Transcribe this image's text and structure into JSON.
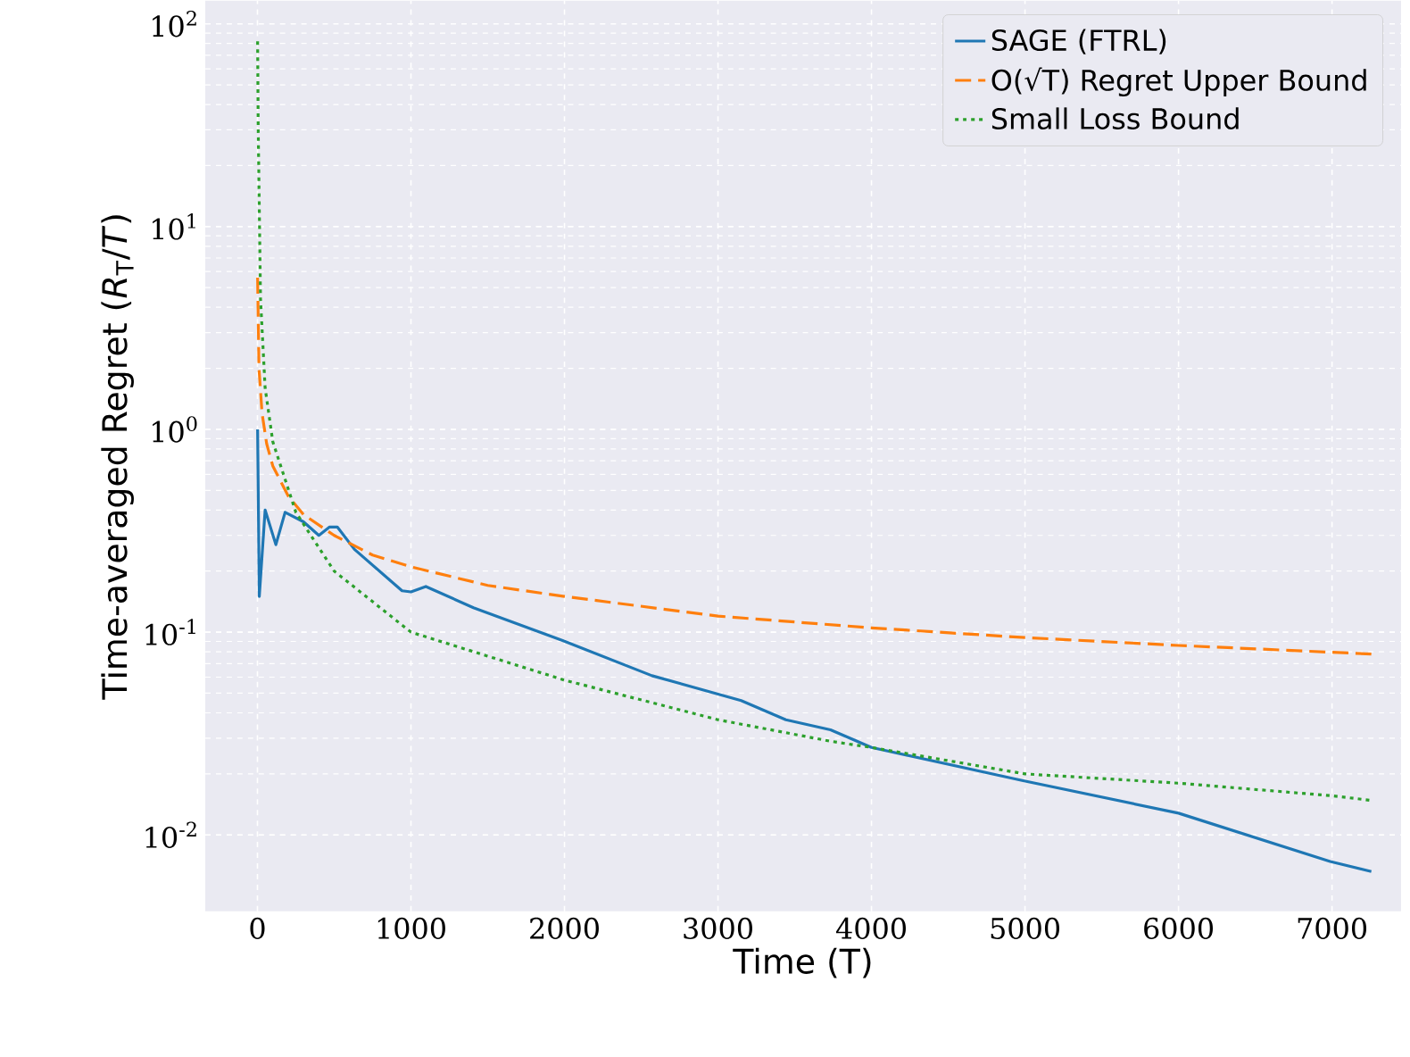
{
  "chart_data": {
    "type": "line",
    "xlabel": "Time (T)",
    "ylabel": "Time-averaged Regret (*R*$_{T}$/*T*)",
    "log": "y",
    "grid": true,
    "legend": "top right",
    "xlim": [
      -340,
      7450
    ],
    "ylim": [
      0.0042,
      130
    ],
    "xticks": [
      0,
      1000,
      2000,
      3000,
      4000,
      5000,
      6000,
      7000
    ],
    "yticks": [
      {
        "value": 0.01,
        "label": "10$^{-2}$"
      },
      {
        "value": 0.1,
        "label": "10$^{-1}$"
      },
      {
        "value": 1,
        "label": "10$^{0}$"
      },
      {
        "value": 10,
        "label": "10$^{1}$"
      },
      {
        "value": 100,
        "label": "10$^{2}$"
      }
    ],
    "series": [
      {
        "name": "SAGE (FTRL)",
        "color": "#1f77b4",
        "line_style": "solid",
        "x": [
          1,
          12,
          50,
          120,
          180,
          300,
          400,
          470,
          520,
          632,
          942,
          1000,
          1097,
          1407,
          1988,
          2570,
          3151,
          3442,
          3733,
          4000,
          4988,
          6000,
          6988,
          7256
        ],
        "values": [
          1.0,
          0.15,
          0.4,
          0.27,
          0.39,
          0.35,
          0.3,
          0.33,
          0.33,
          0.256,
          0.16,
          0.158,
          0.168,
          0.132,
          0.091,
          0.061,
          0.046,
          0.037,
          0.033,
          0.027,
          0.0185,
          0.0128,
          0.0074,
          0.0066
        ]
      },
      {
        "name": "O(√T) Regret Upper Bound",
        "color": "#ff7f0e",
        "line_style": "dashed",
        "x": [
          1,
          10,
          30,
          60,
          100,
          200,
          300,
          500,
          750,
          1000,
          1500,
          2000,
          3000,
          4000,
          5000,
          6000,
          7256
        ],
        "values": [
          5.6,
          2.0,
          1.2,
          0.85,
          0.66,
          0.47,
          0.38,
          0.3,
          0.24,
          0.21,
          0.17,
          0.15,
          0.12,
          0.105,
          0.094,
          0.086,
          0.078
        ]
      },
      {
        "name": "Small Loss Bound",
        "color": "#2ca02c",
        "line_style": "dotted",
        "x": [
          1,
          5,
          20,
          50,
          100,
          250,
          500,
          1000,
          2000,
          3000,
          3730,
          4000,
          5000,
          6000,
          7000,
          7256
        ],
        "values": [
          82,
          30,
          4.4,
          1.6,
          0.87,
          0.39,
          0.2,
          0.1,
          0.058,
          0.037,
          0.029,
          0.027,
          0.02,
          0.018,
          0.0156,
          0.0148
        ]
      }
    ]
  }
}
